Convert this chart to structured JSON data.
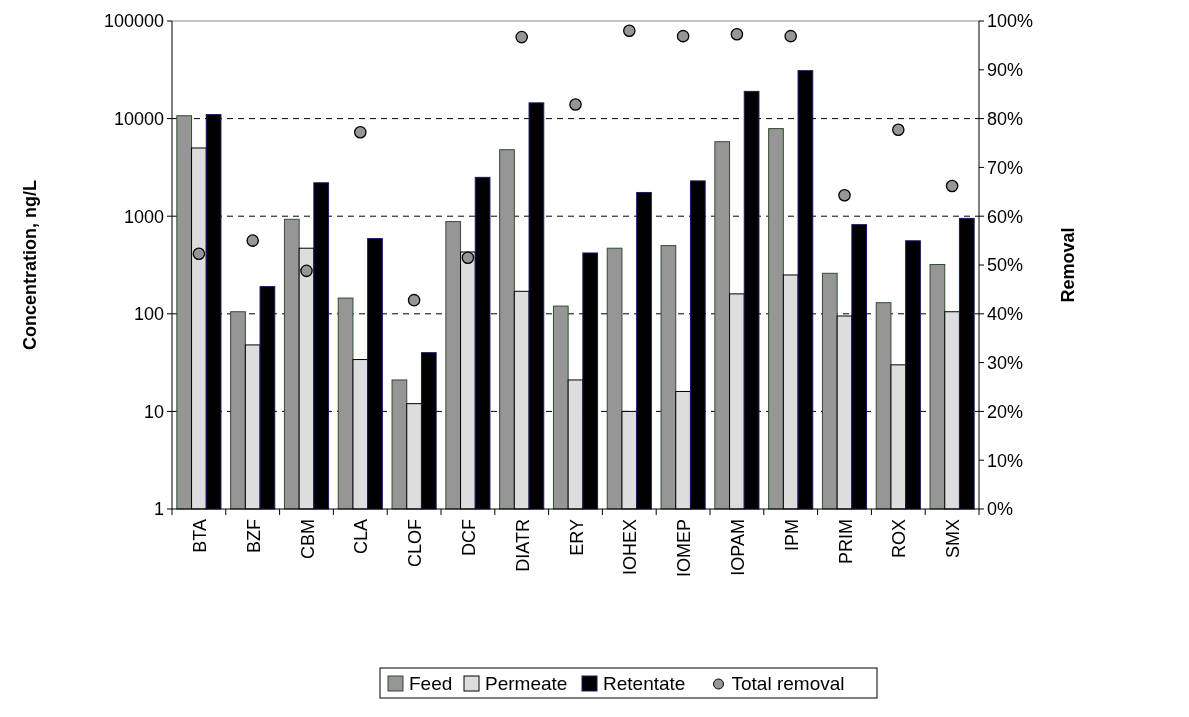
{
  "chart_data": {
    "type": "bar",
    "xlabel": null,
    "ylabel": "Concentration, ng/L",
    "y2label": "Removal",
    "categories": [
      "BTA",
      "BZF",
      "CBM",
      "CLA",
      "CLOF",
      "DCF",
      "DIATR",
      "ERY",
      "IOHEX",
      "IOMEP",
      "IOPAM",
      "IPM",
      "PRIM",
      "ROX",
      "SMX"
    ],
    "series": [
      {
        "name": "Feed",
        "color": "#969696",
        "values": [
          10700,
          105,
          930,
          145,
          21,
          880,
          4800,
          120,
          470,
          500,
          5800,
          7900,
          260,
          130,
          320
        ]
      },
      {
        "name": "Permeate",
        "color": "#dddddd",
        "values": [
          5000,
          48,
          470,
          34,
          12,
          430,
          170,
          21,
          10,
          16,
          160,
          250,
          95,
          30,
          105
        ]
      },
      {
        "name": "Retentate",
        "color": "#000000",
        "values": [
          11000,
          190,
          2200,
          590,
          40,
          2500,
          14500,
          420,
          1750,
          2300,
          19000,
          31000,
          820,
          560,
          950
        ]
      },
      {
        "name": "Total removal",
        "type": "scatter",
        "axis": "y2",
        "color": "#969696",
        "values": [
          52.3,
          55,
          48.8,
          77.2,
          42.8,
          51.5,
          96.7,
          82.9,
          98,
          96.9,
          97.3,
          96.9,
          64.3,
          77.7,
          66.2
        ]
      }
    ],
    "log": "y",
    "ylim": [
      1,
      100000
    ],
    "yticks": [
      1,
      10,
      100,
      1000,
      10000,
      100000
    ],
    "y2lim": [
      0,
      100
    ],
    "y2ticks": [
      {
        "value": 0,
        "label": "0%"
      },
      {
        "value": 10,
        "label": "10%"
      },
      {
        "value": 20,
        "label": "20%"
      },
      {
        "value": 30,
        "label": "30%"
      },
      {
        "value": 40,
        "label": "40%"
      },
      {
        "value": 50,
        "label": "50%"
      },
      {
        "value": 60,
        "label": "60%"
      },
      {
        "value": 70,
        "label": "70%"
      },
      {
        "value": 80,
        "label": "80%"
      },
      {
        "value": 90,
        "label": "90%"
      },
      {
        "value": 100,
        "label": "100%"
      }
    ],
    "grid": "y",
    "legend": "bottom",
    "marker": "circle"
  }
}
